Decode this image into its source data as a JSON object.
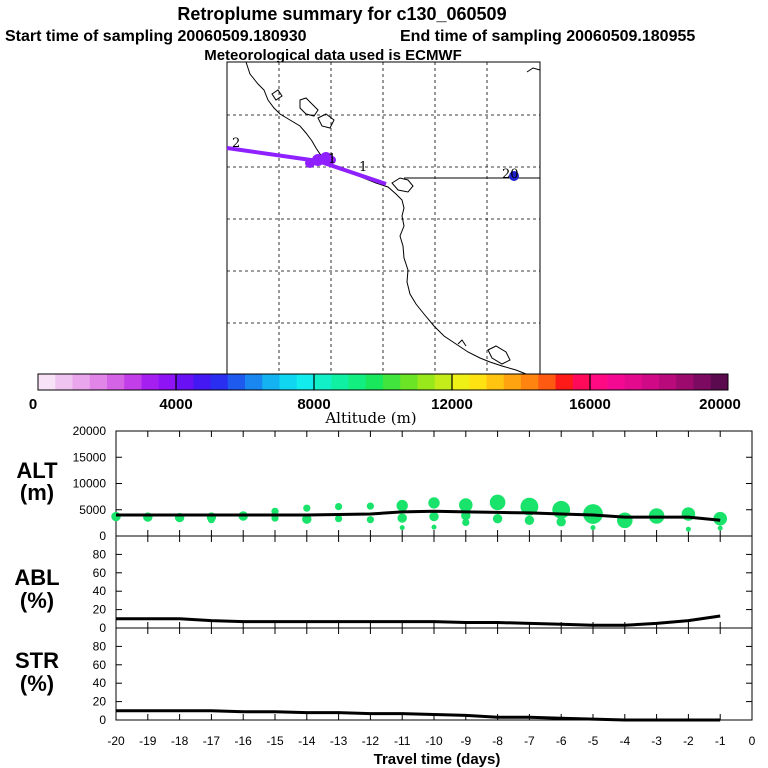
{
  "header": {
    "title": "Retroplume summary for c130_060509",
    "start_label": "Start time of sampling 20060509.180930",
    "end_label": "End time of sampling 20060509.180955",
    "met_label": "Meteorological data used is ECMWF"
  },
  "colors": {
    "plume_line": "#8f20ff",
    "plume_dot": "#8f20ff",
    "far_dot": "#2020cc",
    "alt_dot": "#19e36a",
    "curve": "#000000",
    "coast": "#000000"
  },
  "map": {
    "point_labels": [
      "2",
      "1",
      "1",
      "20"
    ]
  },
  "colorbar": {
    "label": "Altitude (m)",
    "tick_labels": [
      "0",
      "4000",
      "8000",
      "12000",
      "16000",
      "20000"
    ],
    "colors": [
      "#f7e2f7",
      "#f0c4f0",
      "#e9a6ec",
      "#e285e8",
      "#d463e6",
      "#c23ee8",
      "#a51ff0",
      "#8f14f5",
      "#6a10f4",
      "#4418f2",
      "#2a2ef0",
      "#1e5aee",
      "#1a86ef",
      "#14b2f1",
      "#10d6f2",
      "#12ecec",
      "#12f0c8",
      "#10f0a2",
      "#12ee80",
      "#1ae85c",
      "#40e43c",
      "#6ae424",
      "#98e81c",
      "#c4ec1a",
      "#eef016",
      "#ffe212",
      "#ffc410",
      "#ffa410",
      "#ff8410",
      "#ff5a12",
      "#ff1a1a",
      "#ff0a5a",
      "#ff0a82",
      "#f40a92",
      "#e40a8e",
      "#d00a86",
      "#b80a7a",
      "#9c0a6e",
      "#7c0a60",
      "#5c0a50"
    ]
  },
  "chart_data": [
    {
      "type": "scatter",
      "title": "ALT (m)",
      "ylabel": "ALT (m)",
      "xlabel": "Travel time (days)",
      "xlim": [
        -20,
        0
      ],
      "ylim": [
        0,
        20000
      ],
      "x_ticks": [
        -20,
        -19,
        -18,
        -17,
        -16,
        -15,
        -14,
        -13,
        -12,
        -11,
        -10,
        -9,
        -8,
        -7,
        -6,
        -5,
        -4,
        -3,
        -2,
        -1,
        0
      ],
      "y_ticks": [
        0,
        5000,
        10000,
        15000,
        20000
      ],
      "y_tick_labels": [
        "0",
        "5000",
        "10000",
        "15000",
        "20000"
      ],
      "series": [
        {
          "name": "mean altitude",
          "x": [
            -20,
            -19,
            -18,
            -17,
            -16,
            -15,
            -14,
            -13,
            -12,
            -11,
            -10,
            -9,
            -8,
            -7,
            -6,
            -5,
            -4,
            -3,
            -2,
            -1
          ],
          "values": [
            4000,
            4000,
            4000,
            4000,
            4000,
            4000,
            4000,
            4100,
            4200,
            4600,
            4700,
            4600,
            4500,
            4400,
            4200,
            4000,
            3600,
            3600,
            3600,
            3000
          ]
        },
        {
          "name": "plume clusters",
          "points": [
            {
              "x": -20,
              "y": 3700,
              "w": 3
            },
            {
              "x": -19,
              "y": 3600,
              "w": 3
            },
            {
              "x": -18,
              "y": 3500,
              "w": 3
            },
            {
              "x": -17,
              "y": 3600,
              "w": 3
            },
            {
              "x": -17,
              "y": 3100,
              "w": 2
            },
            {
              "x": -16,
              "y": 3800,
              "w": 3
            },
            {
              "x": -15,
              "y": 4700,
              "w": 2
            },
            {
              "x": -15,
              "y": 3400,
              "w": 2
            },
            {
              "x": -14,
              "y": 5300,
              "w": 2
            },
            {
              "x": -14,
              "y": 3200,
              "w": 3
            },
            {
              "x": -13,
              "y": 5600,
              "w": 2
            },
            {
              "x": -13,
              "y": 3300,
              "w": 2
            },
            {
              "x": -12,
              "y": 5700,
              "w": 2
            },
            {
              "x": -12,
              "y": 3100,
              "w": 2
            },
            {
              "x": -11,
              "y": 5800,
              "w": 4
            },
            {
              "x": -11,
              "y": 3400,
              "w": 3
            },
            {
              "x": -11,
              "y": 1600,
              "w": 1
            },
            {
              "x": -10,
              "y": 6300,
              "w": 4
            },
            {
              "x": -10,
              "y": 3700,
              "w": 3
            },
            {
              "x": -10,
              "y": 1700,
              "w": 1
            },
            {
              "x": -9,
              "y": 5900,
              "w": 5
            },
            {
              "x": -9,
              "y": 3900,
              "w": 3
            },
            {
              "x": -9,
              "y": 2600,
              "w": 2
            },
            {
              "x": -8,
              "y": 6400,
              "w": 6
            },
            {
              "x": -8,
              "y": 3300,
              "w": 3
            },
            {
              "x": -7,
              "y": 5600,
              "w": 7
            },
            {
              "x": -7,
              "y": 3000,
              "w": 3
            },
            {
              "x": -6,
              "y": 5000,
              "w": 7
            },
            {
              "x": -6,
              "y": 2700,
              "w": 3
            },
            {
              "x": -5,
              "y": 4200,
              "w": 8
            },
            {
              "x": -5,
              "y": 1600,
              "w": 1
            },
            {
              "x": -4,
              "y": 3000,
              "w": 6
            },
            {
              "x": -3,
              "y": 3800,
              "w": 6
            },
            {
              "x": -2,
              "y": 4200,
              "w": 5
            },
            {
              "x": -2,
              "y": 1300,
              "w": 1
            },
            {
              "x": -1,
              "y": 3300,
              "w": 5
            },
            {
              "x": -1,
              "y": 1500,
              "w": 1
            }
          ]
        }
      ]
    },
    {
      "type": "line",
      "title": "ABL (%)",
      "ylabel": "ABL (%)",
      "xlim": [
        -20,
        0
      ],
      "ylim": [
        0,
        100
      ],
      "y_ticks": [
        0,
        20,
        40,
        60,
        80
      ],
      "y_tick_labels": [
        "0",
        "20",
        "40",
        "60",
        "80"
      ],
      "series": [
        {
          "name": "ABL fraction",
          "x": [
            -20,
            -19,
            -18,
            -17,
            -16,
            -15,
            -14,
            -13,
            -12,
            -11,
            -10,
            -9,
            -8,
            -7,
            -6,
            -5,
            -4,
            -3,
            -2,
            -1
          ],
          "values": [
            10,
            10,
            10,
            8,
            7,
            7,
            7,
            7,
            7,
            7,
            7,
            6,
            6,
            5,
            4,
            3,
            3,
            5,
            8,
            13
          ]
        }
      ]
    },
    {
      "type": "line",
      "title": "STR (%)",
      "ylabel": "STR (%)",
      "xlim": [
        -20,
        0
      ],
      "ylim": [
        0,
        100
      ],
      "y_ticks": [
        0,
        20,
        40,
        60,
        80
      ],
      "y_tick_labels": [
        "0",
        "20",
        "40",
        "60",
        "80"
      ],
      "series": [
        {
          "name": "STR fraction",
          "x": [
            -20,
            -19,
            -18,
            -17,
            -16,
            -15,
            -14,
            -13,
            -12,
            -11,
            -10,
            -9,
            -8,
            -7,
            -6,
            -5,
            -4,
            -3,
            -2,
            -1
          ],
          "values": [
            10,
            10,
            10,
            10,
            9,
            9,
            8,
            8,
            7,
            7,
            6,
            5,
            3,
            3,
            2,
            1,
            0,
            0,
            0,
            0
          ]
        }
      ]
    }
  ],
  "panels": {
    "alt_label_1": "ALT",
    "alt_label_2": "(m)",
    "abl_label_1": "ABL",
    "abl_label_2": "(%)",
    "str_label_1": "STR",
    "str_label_2": "(%)",
    "x_axis_label": "Travel time (days)",
    "x_tick_labels": [
      "-20",
      "-19",
      "-18",
      "-17",
      "-16",
      "-15",
      "-14",
      "-13",
      "-12",
      "-11",
      "-10",
      "-9",
      "-8",
      "-7",
      "-6",
      "-5",
      "-4",
      "-3",
      "-2",
      "-1",
      "0"
    ]
  }
}
